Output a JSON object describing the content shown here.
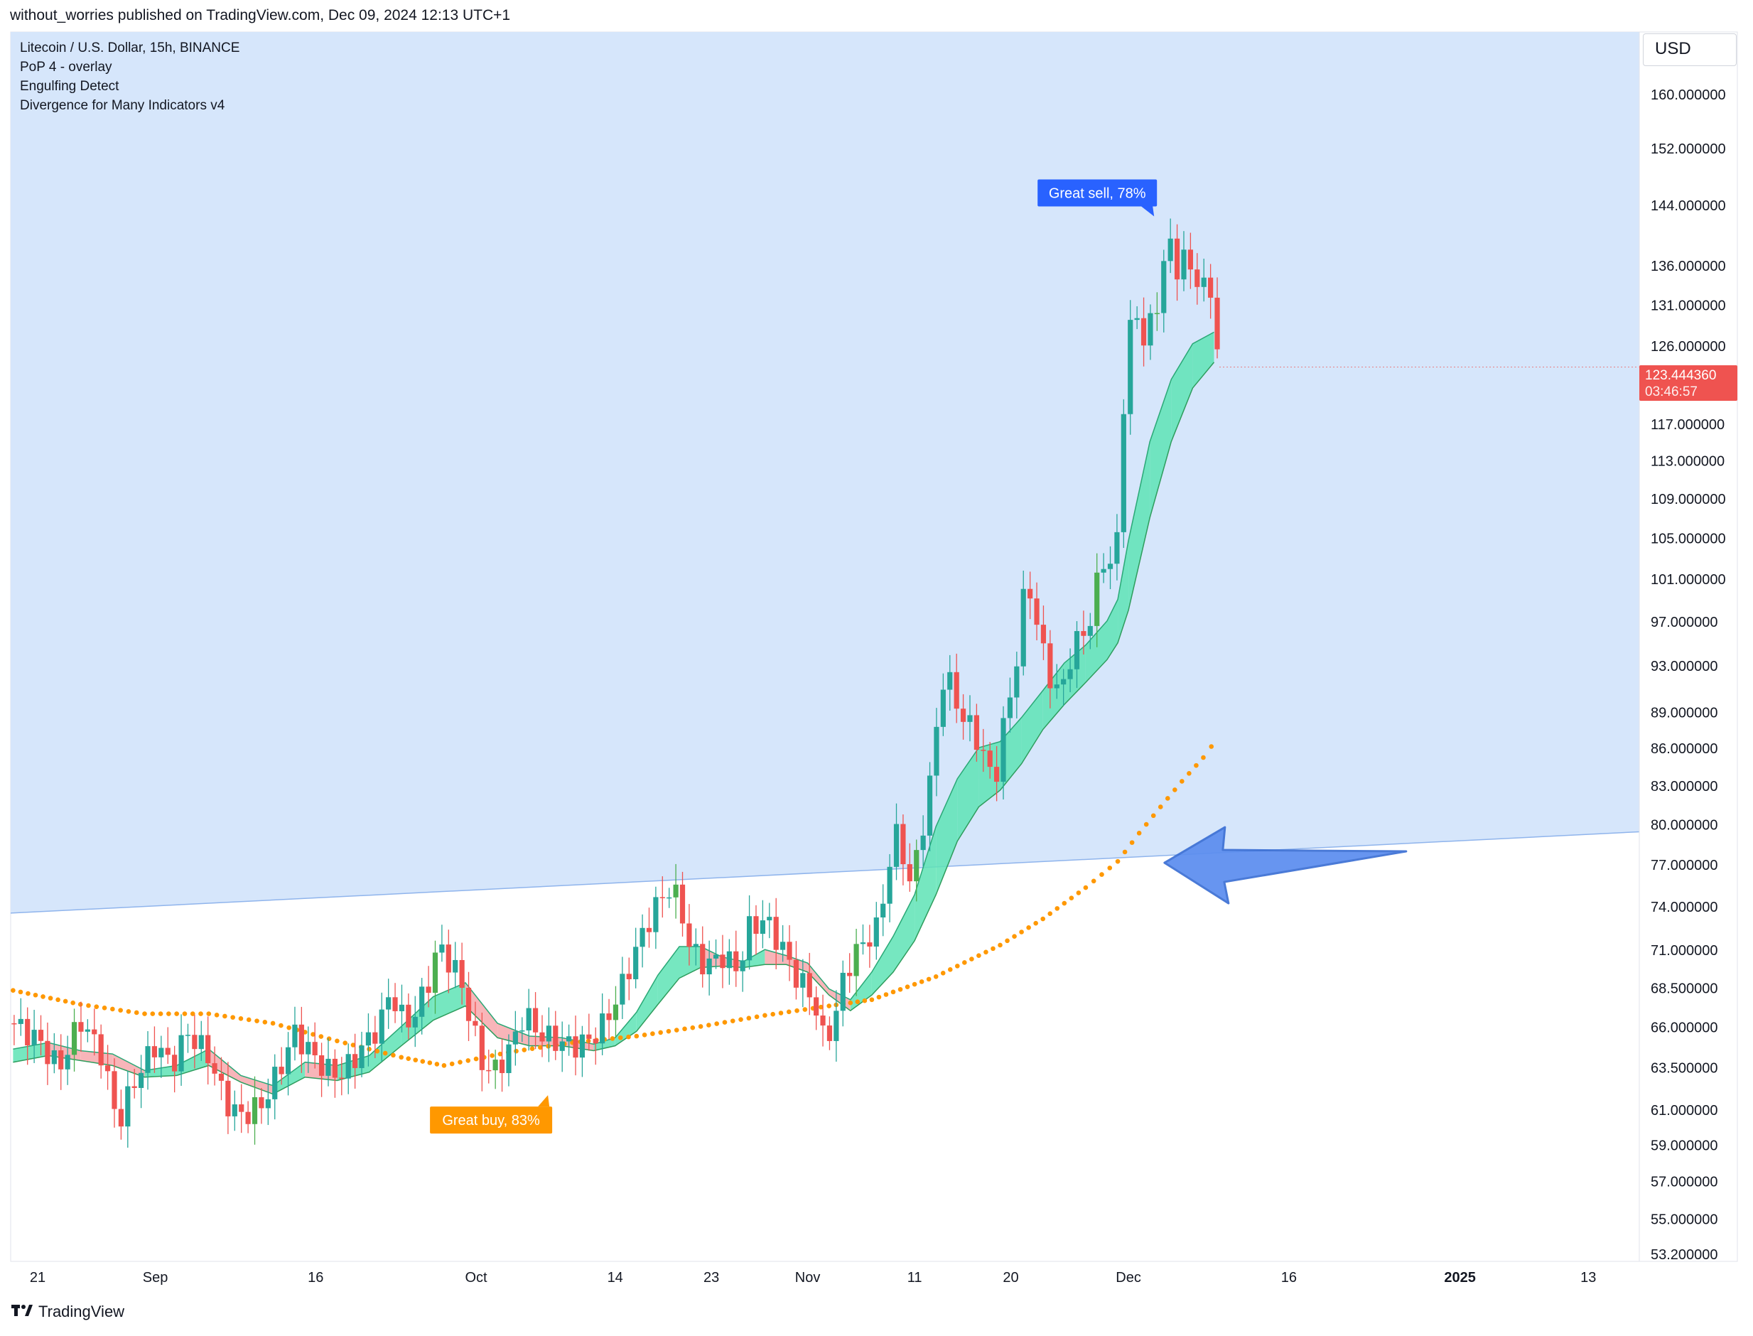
{
  "header": {
    "publisher_text": "without_worries published on TradingView.com, Dec 09, 2024 12:13 UTC+1"
  },
  "legend": {
    "items": [
      "Litecoin / U.S. Dollar, 15h, BINANCE",
      "PoP 4 - overlay",
      "Engulfing Detect",
      "Divergence for Many Indicators v4"
    ]
  },
  "price_scale": {
    "currency": "USD",
    "current_price": "123.444360",
    "countdown": "03:46:57"
  },
  "footer": {
    "brand": "TradingView",
    "logo": "tradingview-logo"
  },
  "colors": {
    "bull": "#26a69a",
    "bull_strong": "#4caf50",
    "bear": "#ef5350",
    "zone": "#d6e6fb",
    "ribbon_up": "#5ee3b5",
    "ribbon_down": "#f7a8ad",
    "ma": "#ff9800",
    "arrow": "#5b8def",
    "sell_label": "#2962ff",
    "buy_label": "#ff9800"
  },
  "chart_data": {
    "type": "candlestick",
    "title": "Litecoin / U.S. Dollar, 15h, BINANCE",
    "y_scale": "log",
    "ylim": [
      53.2,
      168
    ],
    "y_ticks": [
      "160.000000",
      "152.000000",
      "144.000000",
      "136.000000",
      "131.000000",
      "126.000000",
      "117.000000",
      "113.000000",
      "109.000000",
      "105.000000",
      "101.000000",
      "97.000000",
      "93.000000",
      "89.000000",
      "86.000000",
      "83.000000",
      "80.000000",
      "77.000000",
      "74.000000",
      "71.000000",
      "68.500000",
      "66.000000",
      "63.500000",
      "61.000000",
      "59.000000",
      "57.000000",
      "55.000000",
      "53.200000"
    ],
    "x_ticks": [
      {
        "label": "21",
        "day": 0
      },
      {
        "label": "Sep",
        "day": 11
      },
      {
        "label": "16",
        "day": 26
      },
      {
        "label": "Oct",
        "day": 41
      },
      {
        "label": "14",
        "day": 54
      },
      {
        "label": "23",
        "day": 63
      },
      {
        "label": "Nov",
        "day": 72
      },
      {
        "label": "11",
        "day": 82
      },
      {
        "label": "20",
        "day": 91
      },
      {
        "label": "Dec",
        "day": 102
      },
      {
        "label": "16",
        "day": 117
      },
      {
        "label": "2025",
        "day": 133,
        "bold": true
      },
      {
        "label": "13",
        "day": 145
      }
    ],
    "price_path": [
      {
        "day": -2.3,
        "price": 66.2
      },
      {
        "day": 0,
        "price": 65.2
      },
      {
        "day": 2,
        "price": 63.4
      },
      {
        "day": 4,
        "price": 66.4
      },
      {
        "day": 6,
        "price": 64.3
      },
      {
        "day": 7.5,
        "price": 60.1
      },
      {
        "day": 9,
        "price": 62.6
      },
      {
        "day": 11,
        "price": 64.9
      },
      {
        "day": 12.5,
        "price": 63.6
      },
      {
        "day": 14,
        "price": 65.6
      },
      {
        "day": 16,
        "price": 64.2
      },
      {
        "day": 17.5,
        "price": 61.5
      },
      {
        "day": 19,
        "price": 60.6
      },
      {
        "day": 21,
        "price": 61.3
      },
      {
        "day": 22.5,
        "price": 63.2
      },
      {
        "day": 24,
        "price": 65.6
      },
      {
        "day": 25.5,
        "price": 64.4
      },
      {
        "day": 27,
        "price": 63.3
      },
      {
        "day": 28.5,
        "price": 63.1
      },
      {
        "day": 30,
        "price": 64.4
      },
      {
        "day": 32,
        "price": 66.1
      },
      {
        "day": 33,
        "price": 68.3
      },
      {
        "day": 34,
        "price": 66.6
      },
      {
        "day": 35,
        "price": 66.3
      },
      {
        "day": 36.5,
        "price": 68.8
      },
      {
        "day": 37.5,
        "price": 71.3
      },
      {
        "day": 38.5,
        "price": 70.2
      },
      {
        "day": 39.5,
        "price": 69.1
      },
      {
        "day": 40.5,
        "price": 66.3
      },
      {
        "day": 41.5,
        "price": 63.9
      },
      {
        "day": 42.5,
        "price": 63.1
      },
      {
        "day": 44,
        "price": 64.4
      },
      {
        "day": 45.5,
        "price": 66.8
      },
      {
        "day": 47,
        "price": 65.5
      },
      {
        "day": 48.5,
        "price": 65.1
      },
      {
        "day": 50,
        "price": 64.8
      },
      {
        "day": 51.5,
        "price": 65.1
      },
      {
        "day": 53,
        "price": 66.2
      },
      {
        "day": 54.5,
        "price": 68.3
      },
      {
        "day": 56,
        "price": 71.1
      },
      {
        "day": 57.5,
        "price": 73.6
      },
      {
        "day": 59,
        "price": 75.3
      },
      {
        "day": 60,
        "price": 74.3
      },
      {
        "day": 61,
        "price": 71.1
      },
      {
        "day": 62.5,
        "price": 69.9
      },
      {
        "day": 64,
        "price": 70.6
      },
      {
        "day": 65.5,
        "price": 69.6
      },
      {
        "day": 66.5,
        "price": 72.4
      },
      {
        "day": 68,
        "price": 73.1
      },
      {
        "day": 69.5,
        "price": 71.3
      },
      {
        "day": 71,
        "price": 69.1
      },
      {
        "day": 72.5,
        "price": 67.9
      },
      {
        "day": 73.5,
        "price": 65.1
      },
      {
        "day": 74.5,
        "price": 66.3
      },
      {
        "day": 75.5,
        "price": 69.6
      },
      {
        "day": 77,
        "price": 71.3
      },
      {
        "day": 78.5,
        "price": 72.4
      },
      {
        "day": 79.5,
        "price": 76.5
      },
      {
        "day": 80.5,
        "price": 79.8
      },
      {
        "day": 81.5,
        "price": 75.3
      },
      {
        "day": 82.5,
        "price": 78.7
      },
      {
        "day": 83.5,
        "price": 83.3
      },
      {
        "day": 84.5,
        "price": 91.7
      },
      {
        "day": 85.5,
        "price": 91.2
      },
      {
        "day": 86.5,
        "price": 88.3
      },
      {
        "day": 87.5,
        "price": 87.6
      },
      {
        "day": 88.5,
        "price": 85.1
      },
      {
        "day": 89.5,
        "price": 83.3
      },
      {
        "day": 90.5,
        "price": 88.6
      },
      {
        "day": 91.5,
        "price": 93.1
      },
      {
        "day": 92.5,
        "price": 101.7
      },
      {
        "day": 93.5,
        "price": 96.2
      },
      {
        "day": 94.5,
        "price": 92.5
      },
      {
        "day": 95.5,
        "price": 90.2
      },
      {
        "day": 96.5,
        "price": 93.5
      },
      {
        "day": 97.5,
        "price": 95.7
      },
      {
        "day": 98.5,
        "price": 97.1
      },
      {
        "day": 99.5,
        "price": 103.2
      },
      {
        "day": 100.5,
        "price": 101.9
      },
      {
        "day": 101,
        "price": 105.3
      },
      {
        "day": 101.5,
        "price": 118.6
      },
      {
        "day": 102,
        "price": 127.6
      },
      {
        "day": 103,
        "price": 129.7
      },
      {
        "day": 103.5,
        "price": 126.7
      },
      {
        "day": 104,
        "price": 128.2
      },
      {
        "day": 105,
        "price": 132.1
      },
      {
        "day": 105.5,
        "price": 140.2
      },
      {
        "day": 106,
        "price": 137.6
      },
      {
        "day": 106.5,
        "price": 135.4
      },
      {
        "day": 107,
        "price": 138.2
      },
      {
        "day": 107.5,
        "price": 135.9
      },
      {
        "day": 108,
        "price": 133.9
      },
      {
        "day": 108.5,
        "price": 134.9
      },
      {
        "day": 109,
        "price": 133.1
      },
      {
        "day": 109.5,
        "price": 132.5
      },
      {
        "day": 110,
        "price": 131.3
      },
      {
        "day": 110.5,
        "price": 123.4
      }
    ],
    "series": [
      {
        "name": "Litecoin / U.S. Dollar (15h candles)",
        "type": "candlestick",
        "last": 123.44436
      },
      {
        "name": "Long moving average (dots)",
        "type": "dotted-line",
        "points": [
          [
            -2.3,
            68.3
          ],
          [
            4,
            67.4
          ],
          [
            10,
            66.8
          ],
          [
            16,
            66.8
          ],
          [
            22,
            66.2
          ],
          [
            28,
            65.1
          ],
          [
            34,
            64.1
          ],
          [
            38,
            63.6
          ],
          [
            44,
            64.4
          ],
          [
            50,
            65.0
          ],
          [
            56,
            65.4
          ],
          [
            62,
            66.0
          ],
          [
            68,
            66.7
          ],
          [
            74,
            67.3
          ],
          [
            78,
            67.7
          ],
          [
            80,
            68.2
          ],
          [
            84,
            69.2
          ],
          [
            86,
            69.9
          ],
          [
            90,
            71.3
          ],
          [
            94,
            73.1
          ],
          [
            98,
            75.3
          ],
          [
            101,
            77.2
          ],
          [
            103,
            79.3
          ],
          [
            105,
            81.3
          ],
          [
            107,
            83.3
          ],
          [
            109,
            85.2
          ],
          [
            110.5,
            87.0
          ]
        ]
      },
      {
        "name": "Ribbon fast",
        "type": "band-edge",
        "points": [
          [
            -2.3,
            64.6
          ],
          [
            1,
            65.0
          ],
          [
            4,
            64.5
          ],
          [
            7,
            64.3
          ],
          [
            10,
            63.3
          ],
          [
            13,
            63.6
          ],
          [
            16,
            64.6
          ],
          [
            19,
            63.0
          ],
          [
            22,
            62.4
          ],
          [
            25,
            63.8
          ],
          [
            28,
            63.6
          ],
          [
            31,
            64.2
          ],
          [
            34,
            66.0
          ],
          [
            37,
            67.9
          ],
          [
            40,
            68.8
          ],
          [
            43,
            66.2
          ],
          [
            46,
            65.4
          ],
          [
            49,
            65.3
          ],
          [
            52,
            64.9
          ],
          [
            54,
            65.3
          ],
          [
            56,
            66.9
          ],
          [
            58,
            69.3
          ],
          [
            60,
            71.2
          ],
          [
            62,
            71.2
          ],
          [
            64,
            70.5
          ],
          [
            66,
            70.2
          ],
          [
            68,
            71.0
          ],
          [
            70,
            70.6
          ],
          [
            72,
            70.1
          ],
          [
            74,
            68.4
          ],
          [
            76,
            67.7
          ],
          [
            78,
            69.5
          ],
          [
            80,
            71.9
          ],
          [
            82,
            74.8
          ],
          [
            84,
            79.8
          ],
          [
            86,
            83.5
          ],
          [
            88,
            86.0
          ],
          [
            90,
            86.5
          ],
          [
            92,
            88.5
          ],
          [
            94,
            90.8
          ],
          [
            96,
            93.2
          ],
          [
            98,
            94.8
          ],
          [
            100,
            97.0
          ],
          [
            101,
            99.0
          ],
          [
            102,
            104.7
          ],
          [
            104,
            115.0
          ],
          [
            106,
            122.0
          ],
          [
            108,
            126.2
          ],
          [
            110,
            127.6
          ]
        ]
      },
      {
        "name": "Ribbon slow",
        "type": "band-edge",
        "points": [
          [
            -2.3,
            63.8
          ],
          [
            1,
            64.2
          ],
          [
            4,
            63.9
          ],
          [
            7,
            63.6
          ],
          [
            10,
            62.9
          ],
          [
            13,
            63.0
          ],
          [
            16,
            63.6
          ],
          [
            19,
            62.6
          ],
          [
            22,
            61.9
          ],
          [
            25,
            62.9
          ],
          [
            28,
            62.7
          ],
          [
            31,
            63.2
          ],
          [
            34,
            64.8
          ],
          [
            37,
            66.4
          ],
          [
            40,
            67.3
          ],
          [
            43,
            65.3
          ],
          [
            46,
            64.8
          ],
          [
            49,
            64.8
          ],
          [
            52,
            64.5
          ],
          [
            54,
            64.8
          ],
          [
            56,
            65.7
          ],
          [
            58,
            67.4
          ],
          [
            60,
            69.1
          ],
          [
            62,
            69.8
          ],
          [
            64,
            69.9
          ],
          [
            66,
            69.8
          ],
          [
            68,
            70.0
          ],
          [
            70,
            70.0
          ],
          [
            72,
            69.5
          ],
          [
            74,
            68.0
          ],
          [
            76,
            67.0
          ],
          [
            78,
            68.0
          ],
          [
            80,
            69.5
          ],
          [
            82,
            71.6
          ],
          [
            84,
            74.8
          ],
          [
            86,
            78.7
          ],
          [
            88,
            81.3
          ],
          [
            90,
            82.6
          ],
          [
            92,
            84.7
          ],
          [
            94,
            87.5
          ],
          [
            96,
            89.6
          ],
          [
            98,
            91.5
          ],
          [
            100,
            93.5
          ],
          [
            101,
            95.0
          ],
          [
            102,
            98.0
          ],
          [
            104,
            107.0
          ],
          [
            106,
            115.0
          ],
          [
            108,
            121.0
          ],
          [
            110,
            124.0
          ]
        ]
      },
      {
        "name": "Resistance zone (upper-area boundary)",
        "type": "trendline",
        "points": [
          [
            -2.3,
            73.5
          ],
          [
            144.5,
            79.4
          ]
        ]
      }
    ],
    "annotations": [
      {
        "text": "Great sell, 78%",
        "day": 104,
        "price": 143.0,
        "kind": "sell"
      },
      {
        "text": "Great buy,  83%",
        "day": 42,
        "price": 61.5,
        "kind": "buy"
      },
      {
        "text": "arrow-left",
        "day": 117,
        "price": 77.1,
        "kind": "arrow"
      }
    ]
  }
}
